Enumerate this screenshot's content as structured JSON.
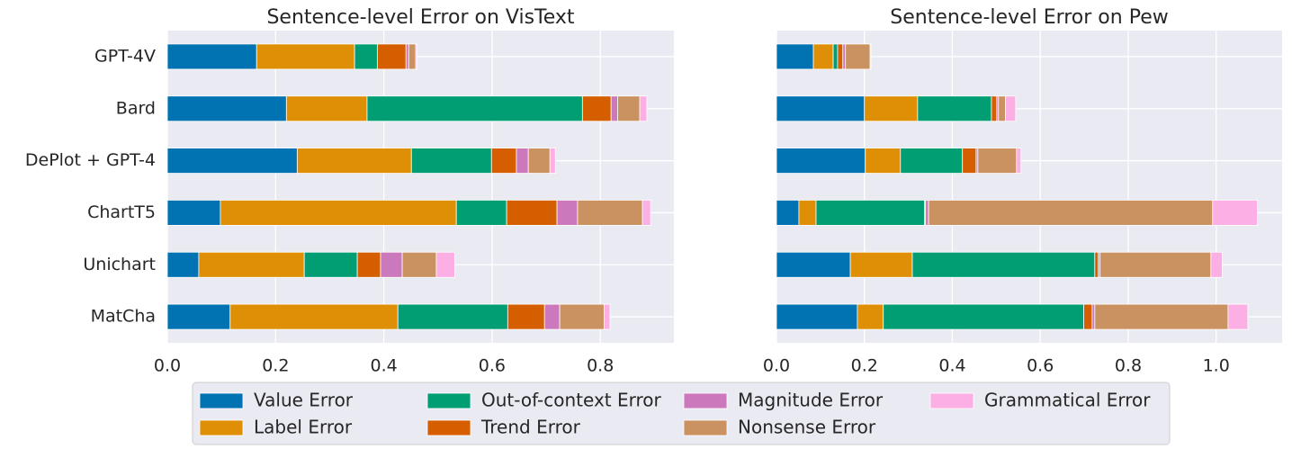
{
  "chart_data": [
    {
      "type": "bar",
      "orientation": "horizontal",
      "stacked": true,
      "title": "Sentence-level Error on VisText",
      "categories": [
        "GPT-4V",
        "Bard",
        "DePlot + GPT-4",
        "ChartT5",
        "Unichart",
        "MatCha"
      ],
      "xlim": [
        0,
        0.936
      ],
      "xticks": [
        {
          "value": 0,
          "label": "0.0"
        },
        {
          "value": 0.2,
          "label": "0.2"
        },
        {
          "value": 0.4,
          "label": "0.4"
        },
        {
          "value": 0.6,
          "label": "0.6"
        },
        {
          "value": 0.8,
          "label": "0.8"
        }
      ],
      "grid": true,
      "series": [
        {
          "name": "Value Error",
          "color": "#0173b2",
          "values": [
            0.165,
            0.22,
            0.24,
            0.098,
            0.058,
            0.116
          ]
        },
        {
          "name": "Label Error",
          "color": "#de8f05",
          "values": [
            0.181,
            0.149,
            0.211,
            0.436,
            0.195,
            0.31
          ]
        },
        {
          "name": "Out-of-context Error",
          "color": "#029e73",
          "values": [
            0.042,
            0.398,
            0.148,
            0.093,
            0.098,
            0.203
          ]
        },
        {
          "name": "Trend Error",
          "color": "#d55e00",
          "values": [
            0.053,
            0.053,
            0.046,
            0.093,
            0.043,
            0.068
          ]
        },
        {
          "name": "Magnitude Error",
          "color": "#cc78bc",
          "values": [
            0.005,
            0.012,
            0.022,
            0.038,
            0.04,
            0.028
          ]
        },
        {
          "name": "Nonsense Error",
          "color": "#ca9161",
          "values": [
            0.013,
            0.041,
            0.04,
            0.12,
            0.063,
            0.082
          ]
        },
        {
          "name": "Grammatical Error",
          "color": "#fbafe4",
          "values": [
            0.002,
            0.013,
            0.01,
            0.015,
            0.034,
            0.011
          ]
        }
      ]
    },
    {
      "type": "bar",
      "orientation": "horizontal",
      "stacked": true,
      "title": "Sentence-level Error on Pew",
      "xlim": [
        0,
        1.15
      ],
      "xticks": [
        {
          "value": 0,
          "label": "0.0"
        },
        {
          "value": 0.2,
          "label": "0.2"
        },
        {
          "value": 0.4,
          "label": "0.4"
        },
        {
          "value": 0.6,
          "label": "0.6"
        },
        {
          "value": 0.8,
          "label": "0.8"
        },
        {
          "value": 1,
          "label": "1.0"
        }
      ],
      "grid": true,
      "series": [
        {
          "color": "#0173b2",
          "values": [
            0.084,
            0.2,
            0.202,
            0.051,
            0.168,
            0.184
          ]
        },
        {
          "color": "#de8f05",
          "values": [
            0.045,
            0.121,
            0.08,
            0.039,
            0.141,
            0.059
          ]
        },
        {
          "color": "#029e73",
          "values": [
            0.01,
            0.168,
            0.141,
            0.247,
            0.415,
            0.456
          ]
        },
        {
          "color": "#d55e00",
          "values": [
            0.012,
            0.012,
            0.031,
            0.002,
            0.008,
            0.019
          ]
        },
        {
          "color": "#cc78bc",
          "values": [
            0.006,
            0.004,
            0.004,
            0.007,
            0.004,
            0.006
          ]
        },
        {
          "color": "#ca9161",
          "values": [
            0.056,
            0.016,
            0.088,
            0.646,
            0.252,
            0.303
          ]
        },
        {
          "color": "#fbafe4",
          "values": [
            0.002,
            0.023,
            0.01,
            0.102,
            0.026,
            0.045
          ]
        }
      ]
    }
  ]
}
